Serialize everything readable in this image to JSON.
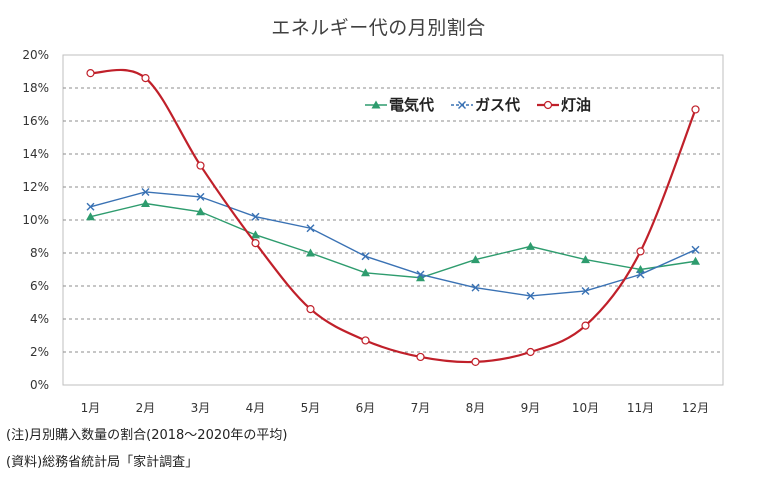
{
  "chart_data": {
    "type": "line",
    "title": "エネルギー代の月別割合",
    "xlabel": "",
    "ylabel": "",
    "categories": [
      "1月",
      "2月",
      "3月",
      "4月",
      "5月",
      "6月",
      "7月",
      "8月",
      "9月",
      "10月",
      "11月",
      "12月"
    ],
    "ylim": [
      0,
      20
    ],
    "yticks": [
      "0%",
      "2%",
      "4%",
      "6%",
      "8%",
      "10%",
      "12%",
      "14%",
      "16%",
      "18%",
      "20%"
    ],
    "grid": true,
    "legend_position": "top-right",
    "series": [
      {
        "name": "電気代",
        "color": "#2e9c6e",
        "marker": "triangle",
        "values": [
          10.2,
          11.0,
          10.5,
          9.1,
          8.0,
          6.8,
          6.5,
          7.6,
          8.4,
          7.6,
          7.0,
          7.5
        ]
      },
      {
        "name": "ガス代",
        "color": "#3a72b4",
        "marker": "x",
        "values": [
          10.8,
          11.7,
          11.4,
          10.2,
          9.5,
          7.8,
          6.7,
          5.9,
          5.4,
          5.7,
          6.7,
          8.2
        ]
      },
      {
        "name": "灯油",
        "color": "#c0202a",
        "marker": "circle",
        "values": [
          18.9,
          18.6,
          13.3,
          8.6,
          4.6,
          2.7,
          1.7,
          1.4,
          2.0,
          3.6,
          8.1,
          16.7
        ]
      }
    ]
  },
  "notes": {
    "note1": "(注)月別購入数量の割合(2018～2020年の平均)",
    "note2": "(資料)総務省統計局「家計調査」"
  }
}
